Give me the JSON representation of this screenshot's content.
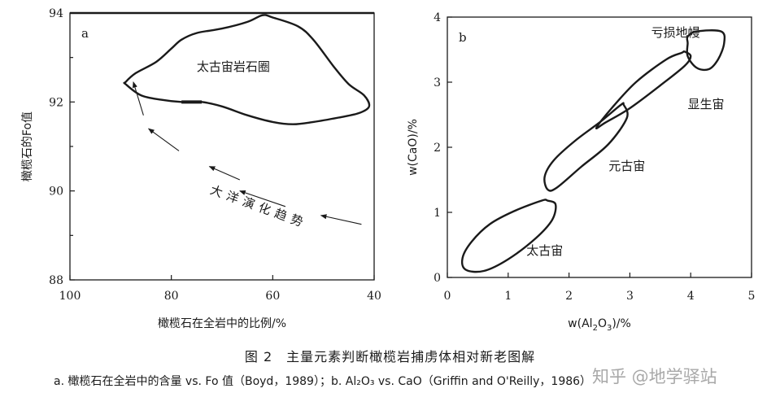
{
  "chart_data": [
    {
      "panel": "a",
      "type": "scatter",
      "xlabel": "橄榄石在全岩中的比例/%",
      "ylabel": "橄榄石的Fo值",
      "xlim": [
        100,
        40
      ],
      "ylim": [
        88,
        94
      ],
      "xticks": [
        100,
        80,
        60,
        40
      ],
      "yticks": [
        88,
        90,
        92,
        94
      ],
      "regions": [
        {
          "name": "太古宙岩石圈",
          "label_at": [
            75,
            92.7
          ],
          "outline": [
            [
              89,
              92.45
            ],
            [
              87,
              92.65
            ],
            [
              83,
              92.9
            ],
            [
              80,
              93.2
            ],
            [
              78,
              93.4
            ],
            [
              75,
              93.55
            ],
            [
              70,
              93.65
            ],
            [
              65,
              93.8
            ],
            [
              62,
              93.95
            ],
            [
              60,
              93.9
            ],
            [
              55,
              93.7
            ],
            [
              52,
              93.4
            ],
            [
              48,
              92.8
            ],
            [
              45,
              92.4
            ],
            [
              42,
              92.15
            ],
            [
              41,
              91.9
            ],
            [
              43,
              91.75
            ],
            [
              47,
              91.65
            ],
            [
              52,
              91.55
            ],
            [
              56,
              91.5
            ],
            [
              60,
              91.55
            ],
            [
              65,
              91.7
            ],
            [
              70,
              91.9
            ],
            [
              74,
              92.0
            ],
            [
              78,
              92.0
            ],
            [
              82,
              92.05
            ],
            [
              86,
              92.15
            ],
            [
              89,
              92.4
            ]
          ]
        }
      ],
      "thick_segment": [
        [
          78,
          92.0
        ],
        [
          74,
          92.0
        ]
      ],
      "arrows": [
        {
          "from": [
            42.5,
            89.25
          ],
          "to": [
            50.5,
            89.45
          ]
        },
        {
          "from": [
            57.5,
            89.65
          ],
          "to": [
            66.5,
            90.0
          ]
        },
        {
          "from": [
            66.5,
            90.25
          ],
          "to": [
            72.5,
            90.55
          ]
        },
        {
          "from": [
            78.5,
            90.9
          ],
          "to": [
            84.5,
            91.4
          ]
        },
        {
          "from": [
            85.5,
            91.7
          ],
          "to": [
            87.5,
            92.45
          ]
        }
      ],
      "trend_label": "大洋演化趋势"
    },
    {
      "panel": "b",
      "type": "scatter",
      "xlabel": "w(Al2O3)/%",
      "ylabel": "w(CaO)/%",
      "xlim": [
        0,
        5
      ],
      "ylim": [
        0,
        4
      ],
      "xticks": [
        0,
        1,
        2,
        3,
        4,
        5
      ],
      "yticks": [
        0,
        1,
        2,
        3,
        4
      ],
      "regions": [
        {
          "name": "太古宙",
          "label_at": [
            1.3,
            0.35
          ],
          "outline": [
            [
              1.55,
              1.18
            ],
            [
              1.1,
              1.02
            ],
            [
              0.7,
              0.82
            ],
            [
              0.4,
              0.55
            ],
            [
              0.25,
              0.3
            ],
            [
              0.3,
              0.12
            ],
            [
              0.6,
              0.1
            ],
            [
              1.0,
              0.28
            ],
            [
              1.45,
              0.6
            ],
            [
              1.72,
              0.88
            ],
            [
              1.78,
              1.12
            ],
            [
              1.65,
              1.18
            ]
          ]
        },
        {
          "name": "元古宙",
          "label_at": [
            2.65,
            1.65
          ],
          "outline": [
            [
              2.85,
              2.65
            ],
            [
              2.5,
              2.38
            ],
            [
              2.1,
              2.1
            ],
            [
              1.75,
              1.8
            ],
            [
              1.6,
              1.55
            ],
            [
              1.65,
              1.35
            ],
            [
              1.8,
              1.38
            ],
            [
              2.2,
              1.7
            ],
            [
              2.65,
              2.05
            ],
            [
              2.95,
              2.45
            ],
            [
              2.9,
              2.65
            ]
          ]
        },
        {
          "name": "显生宙",
          "label_at": [
            3.95,
            2.6
          ],
          "outline": [
            [
              3.85,
              3.45
            ],
            [
              3.6,
              3.35
            ],
            [
              3.1,
              3.0
            ],
            [
              2.7,
              2.6
            ],
            [
              2.45,
              2.3
            ],
            [
              2.6,
              2.38
            ],
            [
              3.0,
              2.6
            ],
            [
              3.5,
              2.95
            ],
            [
              3.9,
              3.25
            ],
            [
              4.0,
              3.4
            ],
            [
              3.9,
              3.47
            ]
          ]
        },
        {
          "name": "亏损地幔",
          "label_at": [
            3.35,
            3.7
          ],
          "outline": [
            [
              3.95,
              3.7
            ],
            [
              4.1,
              3.78
            ],
            [
              4.5,
              3.78
            ],
            [
              4.55,
              3.6
            ],
            [
              4.45,
              3.35
            ],
            [
              4.3,
              3.2
            ],
            [
              4.1,
              3.22
            ],
            [
              3.95,
              3.4
            ],
            [
              3.95,
              3.6
            ]
          ]
        }
      ]
    }
  ],
  "caption": {
    "title": "图 2　主量元素判断橄榄岩捕虏体相对新老图解",
    "subtitle": "a. 橄榄石在全岩中的含量 vs. Fo 值（Boyd，1989）；b. Al₂O₃ vs. CaO（Griffin and O'Reilly，1986）"
  },
  "watermark": "知乎 @地学驿站"
}
